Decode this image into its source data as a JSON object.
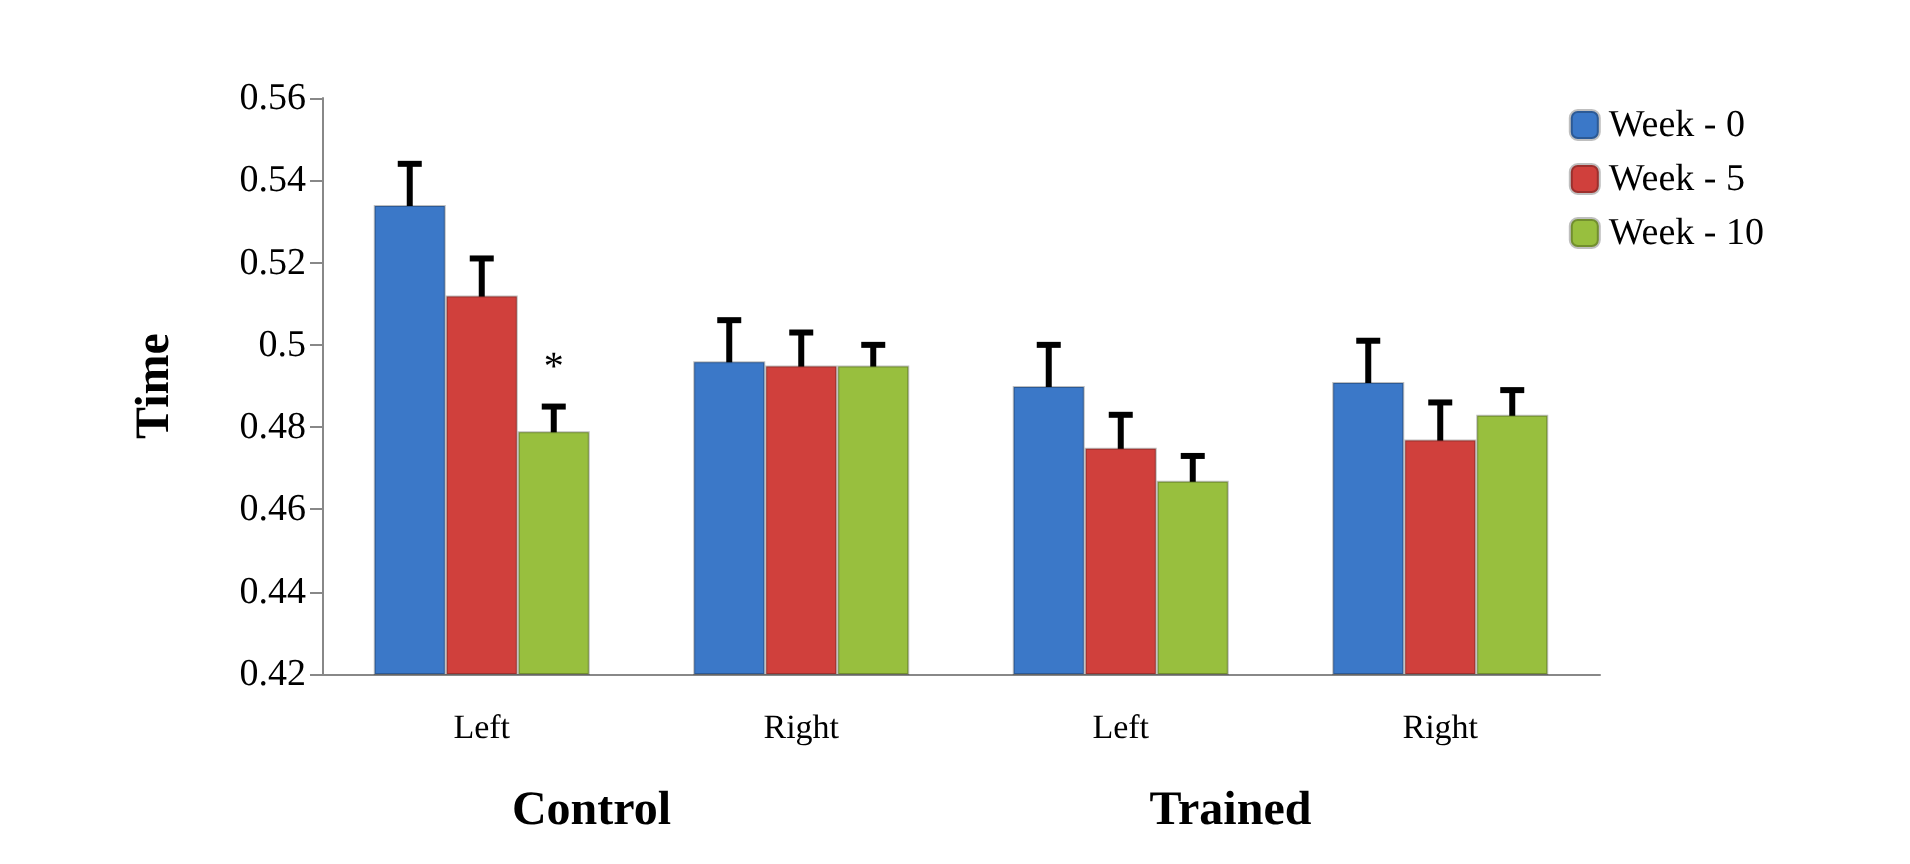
{
  "chart_data": {
    "type": "bar",
    "ylabel": "Time",
    "categories": [
      "Left",
      "Right",
      "Left",
      "Right"
    ],
    "series": [
      {
        "name": "Week - 0",
        "color": "#3b78c8",
        "values": [
          0.534,
          0.496,
          0.49,
          0.491
        ],
        "errors": [
          0.01,
          0.01,
          0.01,
          0.01
        ]
      },
      {
        "name": "Week - 5",
        "color": "#d0403c",
        "values": [
          0.512,
          0.495,
          0.475,
          0.477
        ],
        "errors": [
          0.009,
          0.008,
          0.008,
          0.009
        ]
      },
      {
        "name": "Week - 10",
        "color": "#98bf3e",
        "values": [
          0.479,
          0.495,
          0.467,
          0.483
        ],
        "errors": [
          0.006,
          0.005,
          0.006,
          0.006
        ],
        "value_labels": [
          "*",
          null,
          null,
          null
        ]
      }
    ],
    "annotations": [
      "Control",
      "Trained"
    ],
    "ylim": [
      0.42,
      0.56
    ],
    "yticks": [
      0.42,
      0.44,
      0.46,
      0.48,
      0.5,
      0.52,
      0.54,
      0.56
    ],
    "grid": false,
    "legend": "top right"
  }
}
